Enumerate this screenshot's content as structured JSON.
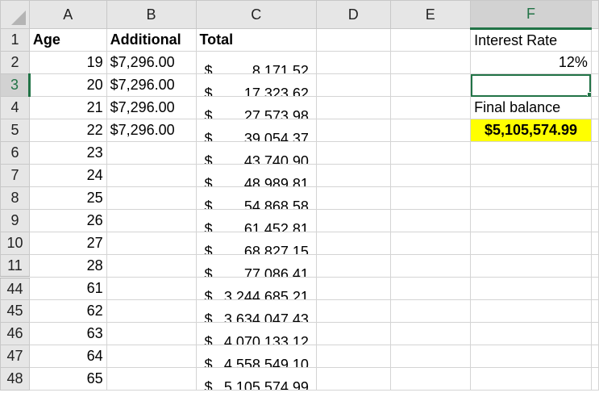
{
  "columns": [
    "A",
    "B",
    "C",
    "D",
    "E",
    "F"
  ],
  "selected_cell": "F3",
  "rows": [
    {
      "num": "1",
      "age": "Age",
      "additional": "Additional",
      "total": "Total",
      "f": "Interest Rate",
      "header": true
    },
    {
      "num": "2",
      "age": "19",
      "additional": "$7,296.00",
      "total": "8,171.52",
      "f": "12%"
    },
    {
      "num": "3",
      "age": "20",
      "additional": "$7,296.00",
      "total": "17,323.62",
      "f": ""
    },
    {
      "num": "4",
      "age": "21",
      "additional": "$7,296.00",
      "total": "27,573.98",
      "f": "Final balance"
    },
    {
      "num": "5",
      "age": "22",
      "additional": "$7,296.00",
      "total": "39,054.37",
      "f": "$5,105,574.99"
    },
    {
      "num": "6",
      "age": "23",
      "additional": "",
      "total": "43,740.90",
      "f": ""
    },
    {
      "num": "7",
      "age": "24",
      "additional": "",
      "total": "48,989.81",
      "f": ""
    },
    {
      "num": "8",
      "age": "25",
      "additional": "",
      "total": "54,868.58",
      "f": ""
    },
    {
      "num": "9",
      "age": "26",
      "additional": "",
      "total": "61,452.81",
      "f": ""
    },
    {
      "num": "10",
      "age": "27",
      "additional": "",
      "total": "68,827.15",
      "f": ""
    },
    {
      "num": "11",
      "age": "28",
      "additional": "",
      "total": "77,086.41",
      "f": ""
    },
    {
      "num": "44",
      "age": "61",
      "additional": "",
      "total": "3,244,685.21",
      "f": ""
    },
    {
      "num": "45",
      "age": "62",
      "additional": "",
      "total": "3,634,047.43",
      "f": ""
    },
    {
      "num": "46",
      "age": "63",
      "additional": "",
      "total": "4,070,133.12",
      "f": ""
    },
    {
      "num": "47",
      "age": "64",
      "additional": "",
      "total": "4,558,549.10",
      "f": ""
    },
    {
      "num": "48",
      "age": "65",
      "additional": "",
      "total": "5,105,574.99",
      "f": ""
    }
  ],
  "currency_symbol": "$",
  "colors": {
    "accent": "#217346",
    "highlight": "#ffff00"
  }
}
